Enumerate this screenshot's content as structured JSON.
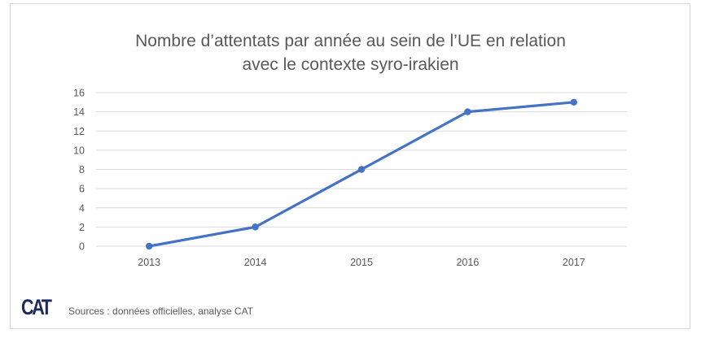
{
  "chart_data": {
    "type": "line",
    "title_line1": "Nombre d’attentats par année au sein de l’UE en relation",
    "title_line2": "avec le contexte syro-irakien",
    "categories": [
      "2013",
      "2014",
      "2015",
      "2016",
      "2017"
    ],
    "values": [
      0,
      2,
      8,
      14,
      15
    ],
    "yticks": [
      0,
      2,
      4,
      6,
      8,
      10,
      12,
      14,
      16
    ],
    "ylim": [
      0,
      16
    ],
    "xlabel": "",
    "ylabel": "",
    "grid": true,
    "series_color": "#4472c4"
  },
  "logo": "CAT",
  "source": "Sources : données officielles, analyse CAT"
}
